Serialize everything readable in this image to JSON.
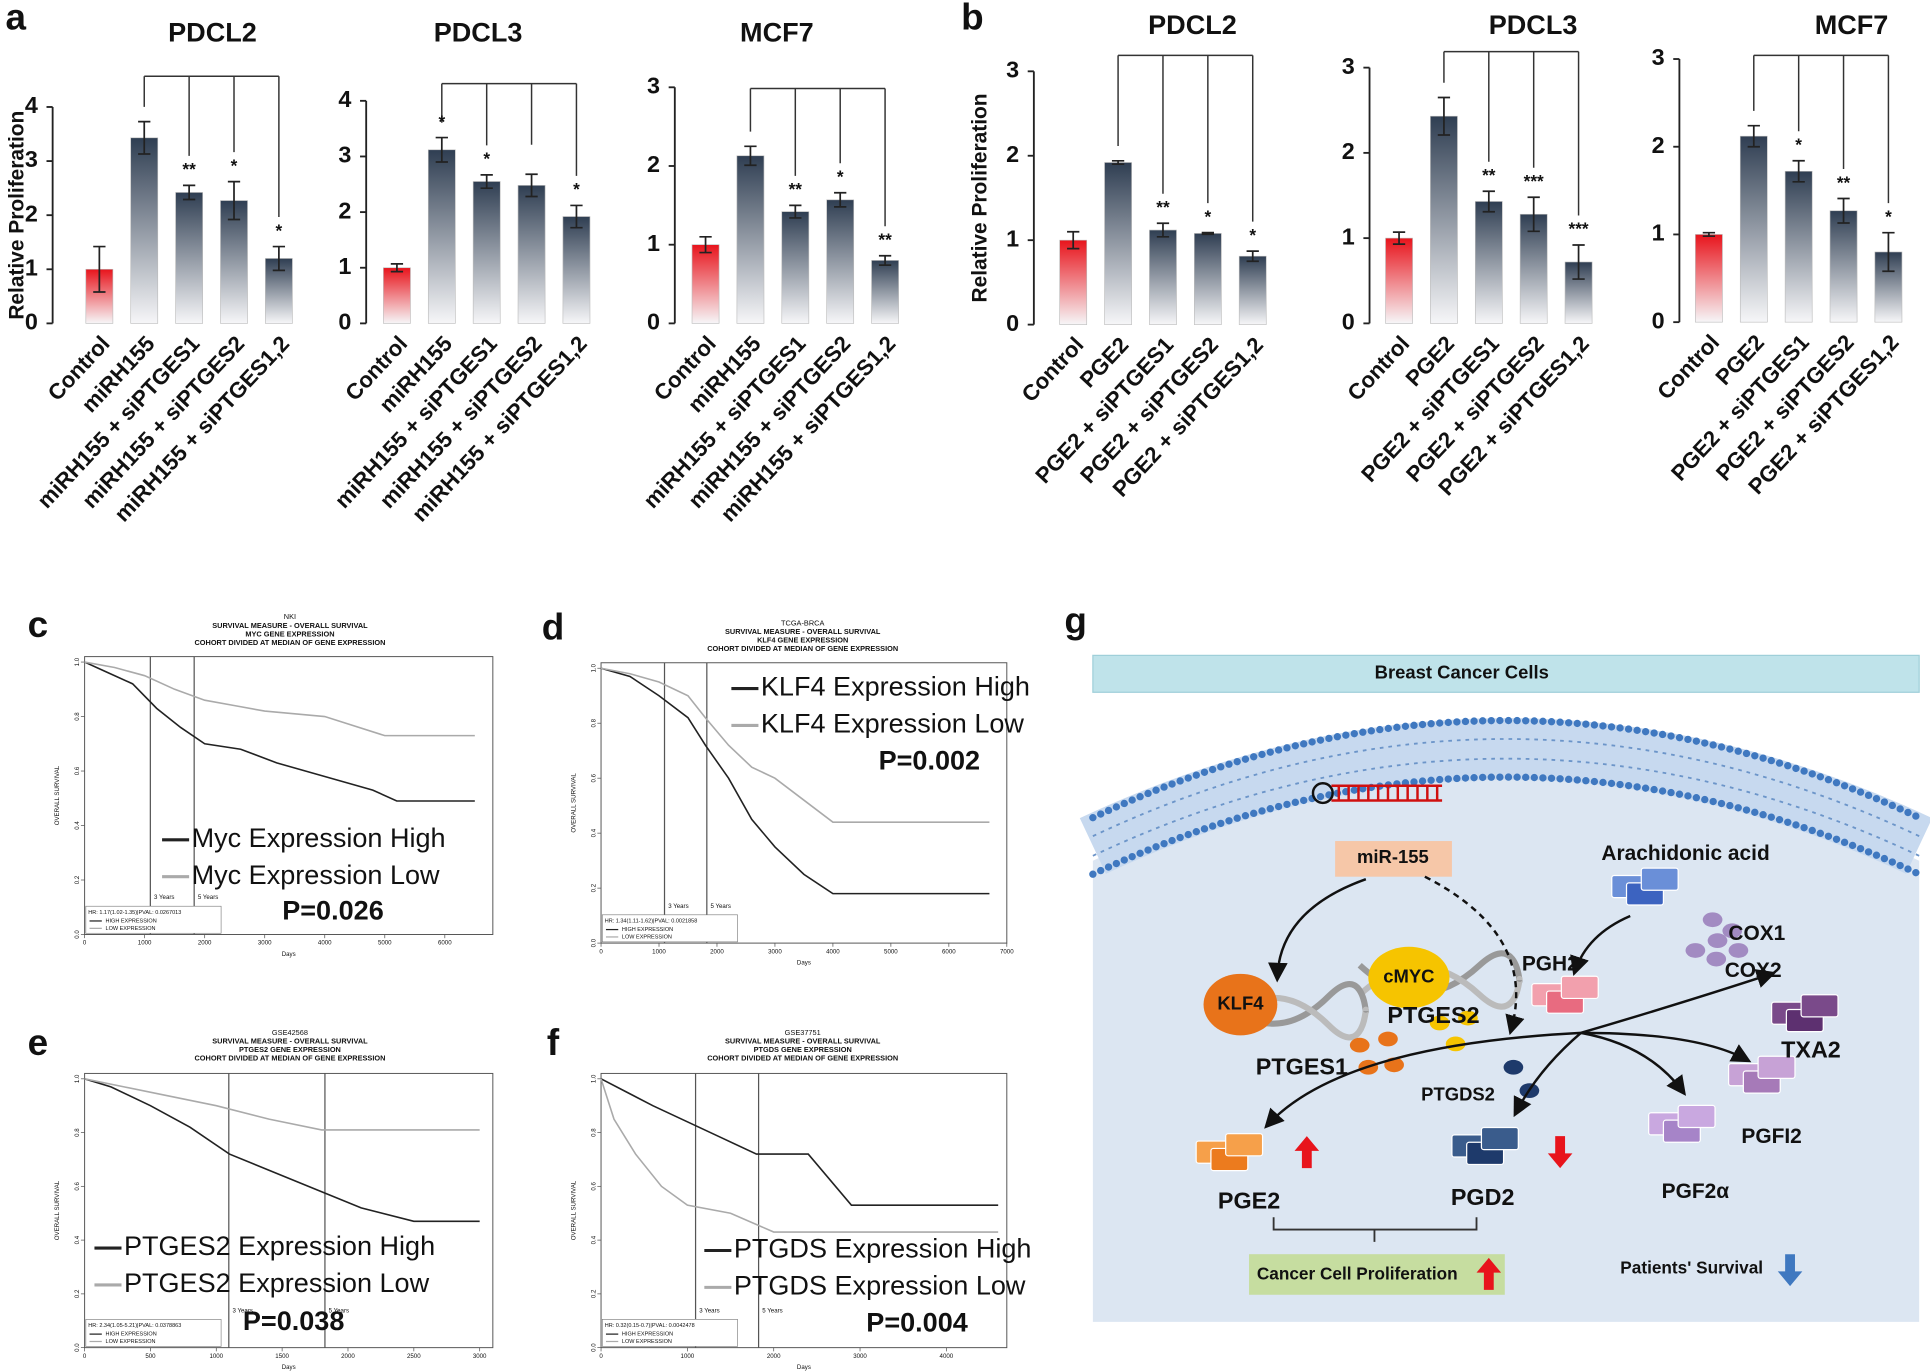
{
  "panel_labels": [
    "a",
    "b",
    "c",
    "d",
    "e",
    "f",
    "g"
  ],
  "chart_data": [
    {
      "type": "bar",
      "title": "PDCL2",
      "y_label": "Relative Proliferation",
      "categories": [
        "Control",
        "miRH155",
        "miRH155 + siPTGES1",
        "miRH155 + siPTGES2",
        "miRH155 + siPTGES1,2"
      ],
      "values": [
        1.0,
        3.43,
        2.42,
        2.27,
        1.2
      ],
      "errors": [
        0.42,
        0.3,
        0.13,
        0.35,
        0.22
      ],
      "significance": [
        null,
        null,
        "**",
        "*",
        "*"
      ],
      "colors": [
        "#e8141c",
        "#2f3e52",
        "#2f3e52",
        "#2f3e52",
        "#2f3e52"
      ],
      "ylim": [
        0,
        4
      ],
      "yticks": [
        0,
        1,
        2,
        3,
        4
      ]
    },
    {
      "type": "bar",
      "title": "PDCL3",
      "categories": [
        "Control",
        "miRH155",
        "miRH155 + siPTGES1",
        "miRH155 + siPTGES2",
        "miRH155 + siPTGES1,2"
      ],
      "values": [
        1.0,
        3.12,
        2.55,
        2.48,
        1.92
      ],
      "errors": [
        0.07,
        0.22,
        0.12,
        0.2,
        0.2
      ],
      "significance": [
        null,
        "*",
        "*",
        null,
        "*"
      ],
      "colors": [
        "#e8141c",
        "#2f3e52",
        "#2f3e52",
        "#2f3e52",
        "#2f3e52"
      ],
      "ylim": [
        0,
        4
      ],
      "yticks": [
        0,
        1,
        2,
        3,
        4
      ]
    },
    {
      "type": "bar",
      "title": "MCF7",
      "categories": [
        "Control",
        "miRH155",
        "miRH155 + siPTGES1",
        "miRH155 + siPTGES2",
        "miRH155 + siPTGES1,2"
      ],
      "values": [
        1.0,
        2.13,
        1.42,
        1.57,
        0.8
      ],
      "errors": [
        0.1,
        0.12,
        0.08,
        0.09,
        0.06
      ],
      "significance": [
        null,
        null,
        "**",
        "*",
        "**"
      ],
      "colors": [
        "#e8141c",
        "#2f3e52",
        "#2f3e52",
        "#2f3e52",
        "#2f3e52"
      ],
      "ylim": [
        0,
        3
      ],
      "yticks": [
        0,
        1,
        2,
        3
      ]
    },
    {
      "type": "bar",
      "title": "PDCL2",
      "y_label": "Relative Proliferation",
      "categories": [
        "Control",
        "PGE2",
        "PGE2 + siPTGES1",
        "PGE2 + siPTGES2",
        "PGE2 + siPTGES1,2"
      ],
      "values": [
        1.0,
        1.92,
        1.12,
        1.08,
        0.81
      ],
      "errors": [
        0.1,
        0.02,
        0.08,
        0.01,
        0.06
      ],
      "significance": [
        null,
        null,
        "**",
        "*",
        "*"
      ],
      "colors": [
        "#e8141c",
        "#2f3e52",
        "#2f3e52",
        "#2f3e52",
        "#2f3e52"
      ],
      "ylim": [
        0,
        3
      ],
      "yticks": [
        0,
        1,
        2,
        3
      ]
    },
    {
      "type": "bar",
      "title": "PDCL3",
      "categories": [
        "Control",
        "PGE2",
        "PGE2 + siPTGES1",
        "PGE2 + siPTGES2",
        "PGE2 + siPTGES1,2"
      ],
      "values": [
        1.0,
        2.43,
        1.43,
        1.28,
        0.72
      ],
      "errors": [
        0.07,
        0.22,
        0.12,
        0.2,
        0.2
      ],
      "significance": [
        null,
        null,
        "**",
        "***",
        "***"
      ],
      "colors": [
        "#e8141c",
        "#2f3e52",
        "#2f3e52",
        "#2f3e52",
        "#2f3e52"
      ],
      "ylim": [
        0,
        3
      ],
      "yticks": [
        0,
        1,
        2,
        3
      ]
    },
    {
      "type": "bar",
      "title": "MCF7",
      "categories": [
        "Control",
        "PGE2",
        "PGE2 + siPTGES1",
        "PGE2 + siPTGES2",
        "PGE2 + siPTGES1,2"
      ],
      "values": [
        1.0,
        2.12,
        1.72,
        1.27,
        0.8
      ],
      "errors": [
        0.02,
        0.12,
        0.12,
        0.14,
        0.22
      ],
      "significance": [
        null,
        null,
        "*",
        "**",
        "*"
      ],
      "colors": [
        "#e8141c",
        "#2f3e52",
        "#2f3e52",
        "#2f3e52",
        "#2f3e52"
      ],
      "ylim": [
        0,
        3
      ],
      "yticks": [
        0,
        1,
        2,
        3
      ]
    },
    {
      "type": "line",
      "title": "NKI",
      "subtitles": [
        "SURVIVAL MEASURE - OVERALL SURVIVAL",
        "MYC GENE EXPRESSION",
        "COHORT DIVIDED AT MEDIAN OF GENE EXPRESSION"
      ],
      "x_label": "Days",
      "y_label": "OVERALL SURVIVAL",
      "series": [
        {
          "name": "Myc Expression High",
          "color": "#222222",
          "x": [
            0,
            300,
            800,
            1200,
            1600,
            2000,
            2600,
            3200,
            4000,
            4800,
            5200,
            6500
          ],
          "values": [
            1,
            0.97,
            0.92,
            0.83,
            0.76,
            0.7,
            0.68,
            0.63,
            0.58,
            0.53,
            0.49,
            0.49
          ]
        },
        {
          "name": "Myc Expression Low",
          "color": "#aaaaaa",
          "x": [
            0,
            500,
            1000,
            1500,
            2000,
            2500,
            3000,
            4000,
            5000,
            6500
          ],
          "values": [
            1,
            0.98,
            0.95,
            0.9,
            0.86,
            0.84,
            0.82,
            0.8,
            0.73,
            0.73
          ]
        }
      ],
      "xlim": [
        0,
        6800
      ],
      "xticks": [
        0,
        1000,
        2000,
        3000,
        4000,
        5000,
        6000
      ],
      "ylim": [
        0,
        1.02
      ],
      "yticks": [
        {
          "value": 0,
          "label": "0.0"
        },
        0.2,
        0.4,
        0.6,
        0.8,
        {
          "value": 1,
          "label": "1.0"
        }
      ],
      "reference_lines": [
        {
          "value": 1095,
          "label": "3 Years"
        },
        {
          "value": 1825,
          "label": "5 Years"
        }
      ],
      "annotation": "P=0.026",
      "hr_text": "HR: 1.17(1.02-1.35)|PVAL: 0.0267013",
      "inset_legend": [
        "HIGH EXPRESSION",
        "LOW EXPRESSION"
      ]
    },
    {
      "type": "line",
      "title": "TCGA-BRCA",
      "subtitles": [
        "SURVIVAL MEASURE - OVERALL SURVIVAL",
        "KLF4 GENE EXPRESSION",
        "COHORT DIVIDED AT MEDIAN OF GENE EXPRESSION"
      ],
      "x_label": "Days",
      "y_label": "OVERALL SURVIVAL",
      "series": [
        {
          "name": "KLF4 Expression High",
          "color": "#222222",
          "x": [
            0,
            500,
            1000,
            1500,
            1800,
            2200,
            2600,
            3000,
            3500,
            4000,
            6700
          ],
          "values": [
            1,
            0.97,
            0.9,
            0.82,
            0.72,
            0.6,
            0.45,
            0.35,
            0.25,
            0.18,
            0.18
          ]
        },
        {
          "name": "KLF4 Expression Low",
          "color": "#aaaaaa",
          "x": [
            0,
            500,
            1000,
            1500,
            1800,
            2200,
            2600,
            3000,
            3500,
            4000,
            6700
          ],
          "values": [
            1,
            0.98,
            0.95,
            0.9,
            0.82,
            0.72,
            0.64,
            0.6,
            0.52,
            0.44,
            0.44
          ]
        }
      ],
      "xlim": [
        0,
        7000
      ],
      "xticks": [
        0,
        1000,
        2000,
        3000,
        4000,
        5000,
        6000,
        7000
      ],
      "ylim": [
        0,
        1.02
      ],
      "yticks": [
        {
          "value": 0,
          "label": "0.0"
        },
        0.2,
        0.4,
        0.6,
        0.8,
        {
          "value": 1,
          "label": "1.0"
        }
      ],
      "reference_lines": [
        {
          "value": 1095,
          "label": "3 Years"
        },
        {
          "value": 1825,
          "label": "5 Years"
        }
      ],
      "annotation": "P=0.002",
      "hr_text": "HR: 1.34(1.11-1.62)|PVAL: 0.0021858",
      "inset_legend": [
        "HIGH EXPRESSION",
        "LOW EXPRESSION"
      ]
    },
    {
      "type": "line",
      "title": "GSE42568",
      "subtitles": [
        "SURVIVAL MEASURE - OVERALL SURVIVAL",
        "PTGES2 GENE EXPRESSION",
        "COHORT DIVIDED AT MEDIAN OF GENE EXPRESSION"
      ],
      "x_label": "Days",
      "y_label": "OVERALL SURVIVAL",
      "series": [
        {
          "name": "PTGES2 Expression High",
          "color": "#222222",
          "x": [
            0,
            200,
            500,
            800,
            1100,
            1500,
            1800,
            2100,
            2500,
            3000
          ],
          "values": [
            1,
            0.97,
            0.9,
            0.82,
            0.72,
            0.64,
            0.58,
            0.52,
            0.47,
            0.47
          ]
        },
        {
          "name": "PTGES2 Expression Low",
          "color": "#aaaaaa",
          "x": [
            0,
            300,
            600,
            1000,
            1400,
            1800,
            3000
          ],
          "values": [
            1,
            0.97,
            0.94,
            0.9,
            0.85,
            0.81,
            0.81
          ]
        }
      ],
      "xlim": [
        0,
        3100
      ],
      "xticks": [
        0,
        500,
        1000,
        1500,
        2000,
        2500,
        3000
      ],
      "ylim": [
        0,
        1.02
      ],
      "yticks": [
        {
          "value": 0,
          "label": "0.0"
        },
        0.2,
        0.4,
        0.6,
        0.8,
        {
          "value": 1,
          "label": "1.0"
        }
      ],
      "reference_lines": [
        {
          "value": 1095,
          "label": "3 Years"
        },
        {
          "value": 1825,
          "label": "5 Years"
        }
      ],
      "annotation": "P=0.038",
      "hr_text": "HR: 2.34(1.05-5.21)|PVAL: 0.0378863",
      "inset_legend": [
        "HIGH EXPRESSION",
        "LOW EXPRESSION"
      ]
    },
    {
      "type": "line",
      "title": "GSE37751",
      "subtitles": [
        "SURVIVAL MEASURE - OVERALL SURVIVAL",
        "PTGDS GENE EXPRESSION",
        "COHORT DIVIDED AT MEDIAN OF GENE EXPRESSION"
      ],
      "x_label": "Days",
      "y_label": "OVERALL SURVIVAL",
      "series": [
        {
          "name": "PTGDS Expression High",
          "color": "#222222",
          "x": [
            0,
            300,
            600,
            1000,
            1400,
            1800,
            2400,
            2900,
            4600
          ],
          "values": [
            1,
            0.95,
            0.9,
            0.84,
            0.78,
            0.72,
            0.72,
            0.53,
            0.53
          ]
        },
        {
          "name": "PTGDS Expression Low",
          "color": "#aaaaaa",
          "x": [
            0,
            150,
            400,
            700,
            1000,
            1500,
            2000,
            4600
          ],
          "values": [
            1,
            0.85,
            0.72,
            0.6,
            0.53,
            0.5,
            0.43,
            0.43
          ]
        }
      ],
      "xlim": [
        0,
        4700
      ],
      "xticks": [
        0,
        1000,
        2000,
        3000,
        4000
      ],
      "ylim": [
        0,
        1.02
      ],
      "yticks": [
        {
          "value": 0,
          "label": "0.0"
        },
        0.2,
        0.4,
        0.6,
        0.8,
        {
          "value": 1,
          "label": "1.0"
        }
      ],
      "reference_lines": [
        {
          "value": 1095,
          "label": "3 Years"
        },
        {
          "value": 1825,
          "label": "5 Years"
        }
      ],
      "annotation": "P=0.004",
      "hr_text": "HR: 0.32(0.15-0.7)|PVAL: 0.0042478",
      "inset_legend": [
        "HIGH EXPRESSION",
        "LOW EXPRESSION"
      ]
    }
  ],
  "diagram": {
    "title": "Breast Cancer Cells",
    "nodes": [
      {
        "label": "miR-155"
      },
      {
        "label": "Arachidonic acid"
      },
      {
        "label": "COX1"
      },
      {
        "label": "COX2"
      },
      {
        "label": "cMYC"
      },
      {
        "label": "PTGES2"
      },
      {
        "label": "KLF4"
      },
      {
        "label": "PTGES1"
      },
      {
        "label": "PGH2"
      },
      {
        "label": "TXA2"
      },
      {
        "label": "PTGDS2"
      },
      {
        "label": "PGFI2"
      },
      {
        "label": "PGE2"
      },
      {
        "label": "PGD2"
      },
      {
        "label": "PGF2α"
      },
      {
        "label": "Cancer Cell Proliferation"
      },
      {
        "label": "Patients' Survival"
      }
    ]
  }
}
